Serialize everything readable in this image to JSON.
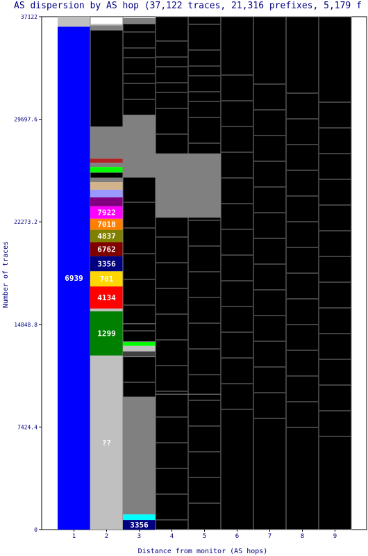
{
  "chart_data": {
    "type": "stacked-bar",
    "title": "AS dispersion by AS hop (37,122 traces, 21,316 prefixes, 5,179 f",
    "xlabel": "Distance from monitor (AS hops)",
    "ylabel": "Number of traces",
    "ylim": [
      0,
      37122
    ],
    "yticks": [
      "0",
      "7424.4",
      "14848.8",
      "22273.2",
      "29697.6",
      "37122"
    ],
    "categories": [
      "1",
      "2",
      "3",
      "4",
      "5",
      "6",
      "7",
      "8",
      "9"
    ],
    "colors": {
      "blue": "#0000ff",
      "green": "#008000",
      "red": "#ff0000",
      "gold": "#ffd700",
      "navy": "#000080",
      "maroon": "#800000",
      "olive": "#808000",
      "orange": "#ff8000",
      "magenta": "#ff00ff",
      "purple": "#800080",
      "lavender": "#9999ff",
      "tan": "#d2b48c",
      "lime": "#00ff00",
      "cyan": "#00ffff",
      "silver": "#c0c0c0",
      "gray": "#808080",
      "black": "#000000",
      "darkred": "#b22222",
      "dimgray": "#404040"
    },
    "series": [
      {
        "hop": 1,
        "segments": [
          {
            "label": "6939",
            "value": 36400,
            "color": "blue"
          },
          {
            "label": "",
            "value": 722,
            "color": "silver"
          }
        ]
      },
      {
        "hop": 2,
        "segments": [
          {
            "label": "??",
            "value": 12600,
            "color": "silver"
          },
          {
            "label": "1299",
            "value": 3200,
            "color": "green"
          },
          {
            "label": "",
            "value": 200,
            "color": "silver"
          },
          {
            "label": "4134",
            "value": 1600,
            "color": "red"
          },
          {
            "label": "701",
            "value": 1100,
            "color": "gold"
          },
          {
            "label": "3356",
            "value": 1100,
            "color": "navy"
          },
          {
            "label": "6762",
            "value": 1000,
            "color": "maroon"
          },
          {
            "label": "4837",
            "value": 900,
            "color": "olive"
          },
          {
            "label": "7018",
            "value": 800,
            "color": "orange"
          },
          {
            "label": "7922",
            "value": 900,
            "color": "magenta"
          },
          {
            "label": "",
            "value": 650,
            "color": "purple"
          },
          {
            "label": "",
            "value": 550,
            "color": "lavender"
          },
          {
            "label": "",
            "value": 550,
            "color": "tan"
          },
          {
            "label": "",
            "value": 300,
            "color": "gray"
          },
          {
            "label": "",
            "value": 400,
            "color": "black"
          },
          {
            "label": "",
            "value": 400,
            "color": "lime"
          },
          {
            "label": "",
            "value": 300,
            "color": "gray"
          },
          {
            "label": "",
            "value": 300,
            "color": "darkred"
          },
          {
            "label": "",
            "value": 2300,
            "color": "gray"
          },
          {
            "label": "",
            "value": 7000,
            "color": "black"
          },
          {
            "label": "",
            "value": 350,
            "color": "gray"
          },
          {
            "label": "",
            "value": 100,
            "color": "silver"
          }
        ]
      },
      {
        "hop": 3,
        "segments": [
          {
            "label": "3356",
            "value": 700,
            "color": "navy"
          },
          {
            "label": "",
            "value": 400,
            "color": "cyan"
          },
          {
            "label": "",
            "value": 3500,
            "color": "gray"
          },
          {
            "label": "",
            "value": 5000,
            "color": "gray"
          },
          {
            "label": "",
            "value": 2900,
            "color": "black"
          },
          {
            "label": "",
            "value": 400,
            "color": "dimgray"
          },
          {
            "label": "",
            "value": 400,
            "color": "silver"
          },
          {
            "label": "",
            "value": 300,
            "color": "lime"
          },
          {
            "label": "",
            "value": 1300,
            "color": "black"
          },
          {
            "label": "",
            "value": 10600,
            "color": "black"
          },
          {
            "label": "",
            "value": 4500,
            "color": "gray"
          },
          {
            "label": "",
            "value": 6600,
            "color": "black"
          },
          {
            "label": "",
            "value": 422,
            "color": "gray"
          }
        ]
      },
      {
        "hop": 4,
        "segments": [
          {
            "label": "",
            "value": 9800,
            "color": "black"
          },
          {
            "label": "",
            "value": 12800,
            "color": "black"
          },
          {
            "label": "",
            "value": 4600,
            "color": "gray"
          },
          {
            "label": "",
            "value": 9922,
            "color": "black"
          }
        ]
      },
      {
        "hop": 5,
        "segments": [
          {
            "label": "",
            "value": 9800,
            "color": "black"
          },
          {
            "label": "",
            "value": 12800,
            "color": "black"
          },
          {
            "label": "",
            "value": 4600,
            "color": "gray"
          },
          {
            "label": "",
            "value": 9922,
            "color": "black"
          }
        ]
      },
      {
        "hop": 6,
        "segments": [
          {
            "label": "",
            "value": 37122,
            "color": "black"
          }
        ]
      },
      {
        "hop": 7,
        "segments": [
          {
            "label": "",
            "value": 37122,
            "color": "black"
          }
        ]
      },
      {
        "hop": 8,
        "segments": [
          {
            "label": "",
            "value": 37122,
            "color": "black"
          }
        ]
      },
      {
        "hop": 9,
        "segments": [
          {
            "label": "",
            "value": 37122,
            "color": "black"
          }
        ]
      }
    ]
  }
}
